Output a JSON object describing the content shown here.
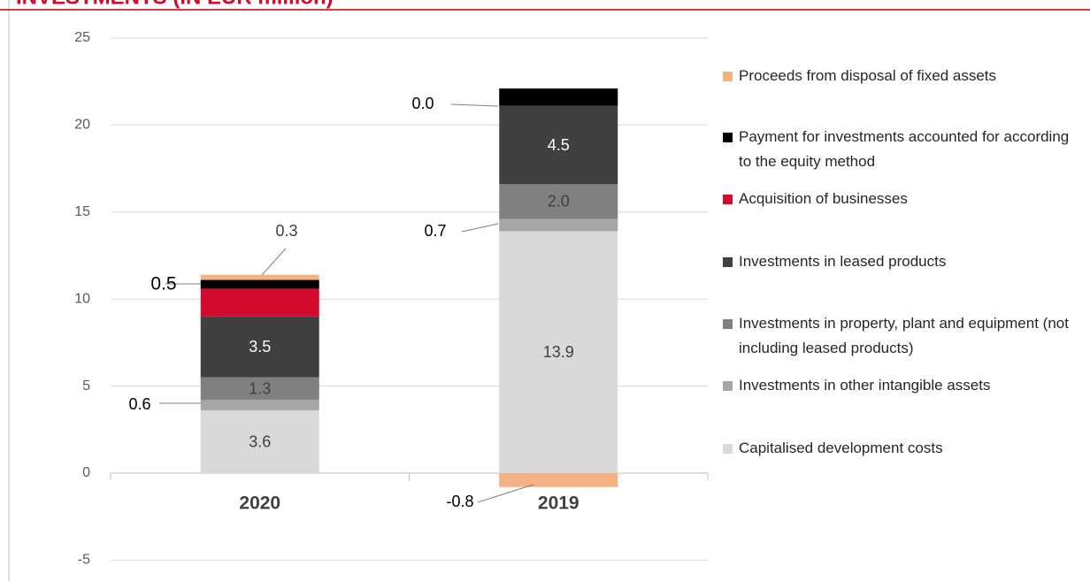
{
  "chart_data": {
    "type": "stacked_bar",
    "title": "INVESTMENTS (IN EUR million)",
    "categories": [
      "2020",
      "2019"
    ],
    "series": [
      {
        "name": "Capitalised development costs",
        "color": "#d9d9d9",
        "values": [
          3.6,
          13.9
        ],
        "value_labels": [
          "3.6",
          "13.9"
        ]
      },
      {
        "name": "Investments in other intangible assets",
        "color": "#a6a6a6",
        "values": [
          0.6,
          0.7
        ],
        "value_labels": [
          "0.6",
          "0.7"
        ]
      },
      {
        "name": "Investments in property, plant and equipment (not including leased products)",
        "color": "#808080",
        "values": [
          1.3,
          2.0
        ],
        "value_labels": [
          "1.3",
          "2.0"
        ]
      },
      {
        "name": "Investments in leased products",
        "color": "#404040",
        "values": [
          3.5,
          4.5
        ],
        "value_labels": [
          "3.5",
          "4.5"
        ]
      },
      {
        "name": "Acquisition of businesses",
        "color": "#d20a2e",
        "values": [
          1.6,
          0.0
        ],
        "value_labels": [
          null,
          "0.0"
        ]
      },
      {
        "name": "Payment for investments accounted for according to the equity method",
        "color": "#000000",
        "values": [
          0.5,
          1.0
        ],
        "value_labels": [
          "0.5",
          null
        ]
      },
      {
        "name": "Proceeds from disposal of fixed assets",
        "color": "#f4b183",
        "values": [
          0.3,
          -0.8
        ],
        "value_labels": [
          "0.3",
          "-0.8"
        ]
      }
    ],
    "ylim": [
      -5,
      25
    ],
    "yticks": [
      -5,
      0,
      5,
      10,
      15,
      20,
      25
    ],
    "grid": true,
    "legend": "right"
  }
}
